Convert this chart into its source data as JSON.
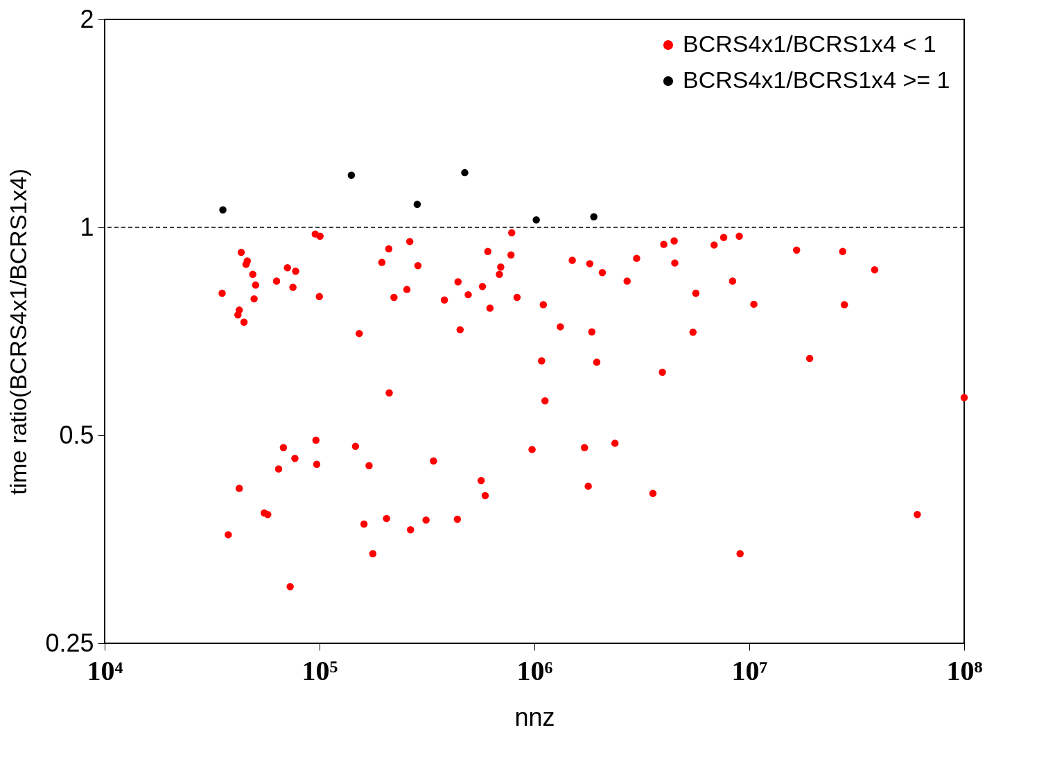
{
  "chart_data": {
    "type": "scatter",
    "xlabel": "nnz",
    "ylabel": "time ratio(BCRS4x1/BCRS1x4)",
    "log": "xy",
    "xlim": [
      10000,
      100000000
    ],
    "ylim": [
      0.25,
      2
    ],
    "xticks": [
      {
        "value": 10000,
        "label": "10⁴"
      },
      {
        "value": 100000,
        "label": "10⁵"
      },
      {
        "value": 1000000,
        "label": "10⁶"
      },
      {
        "value": 10000000,
        "label": "10⁷"
      },
      {
        "value": 100000000,
        "label": "10⁸"
      }
    ],
    "yticks": [
      0.25,
      0.5,
      1,
      2
    ],
    "grid": false,
    "legend": "top right",
    "marker": "circle",
    "ref_lines": [
      {
        "axis": "y",
        "value": 1,
        "line_style": "dashed",
        "color": "#000000"
      }
    ],
    "series": [
      {
        "name": "BCRS4x1/BCRS1x4 < 1",
        "color": "#ff0000",
        "x": [
          35200,
          37600,
          41700,
          42300,
          43200,
          44500,
          42300,
          45500,
          46100,
          48900,
          50400,
          49600,
          55300,
          57400,
          63100,
          64500,
          67900,
          70900,
          73000,
          75200,
          76800,
          77400,
          95500,
          100500,
          96200,
          97000,
          99800,
          147000,
          153000,
          161000,
          170000,
          177000,
          195000,
          205000,
          210000,
          211000,
          222000,
          255000,
          263000,
          265000,
          287000,
          313000,
          339000,
          381000,
          438000,
          441000,
          451000,
          492000,
          565000,
          573000,
          590000,
          607000,
          621000,
          687000,
          697000,
          778000,
          784000,
          830000,
          975000,
          1080000,
          1100000,
          1120000,
          1320000,
          1500000,
          1710000,
          1780000,
          1810000,
          1850000,
          1950000,
          2070000,
          2370000,
          2700000,
          2990000,
          3560000,
          3940000,
          4000000,
          4470000,
          4500000,
          5470000,
          5640000,
          6860000,
          7600000,
          8360000,
          8980000,
          9060000,
          10500000,
          16600000,
          19100000,
          27200000,
          27700000,
          38300000,
          60500000,
          100000000
        ],
        "values": [
          0.803,
          0.359,
          0.747,
          0.759,
          0.92,
          0.729,
          0.419,
          0.884,
          0.894,
          0.855,
          0.825,
          0.788,
          0.386,
          0.384,
          0.836,
          0.447,
          0.48,
          0.874,
          0.302,
          0.819,
          0.463,
          0.864,
          0.978,
          0.971,
          0.492,
          0.454,
          0.794,
          0.482,
          0.702,
          0.372,
          0.452,
          0.337,
          0.89,
          0.379,
          0.931,
          0.576,
          0.792,
          0.813,
          0.954,
          0.365,
          0.88,
          0.377,
          0.459,
          0.785,
          0.378,
          0.834,
          0.711,
          0.799,
          0.43,
          0.821,
          0.409,
          0.923,
          0.764,
          0.855,
          0.876,
          0.912,
          0.982,
          0.792,
          0.477,
          0.641,
          0.773,
          0.561,
          0.718,
          0.896,
          0.48,
          0.422,
          0.886,
          0.706,
          0.638,
          0.86,
          0.487,
          0.836,
          0.902,
          0.412,
          0.617,
          0.945,
          0.956,
          0.888,
          0.705,
          0.803,
          0.943,
          0.967,
          0.836,
          0.971,
          0.337,
          0.774,
          0.927,
          0.646,
          0.923,
          0.773,
          0.868,
          0.384,
          0.567
        ]
      },
      {
        "name": "BCRS4x1/BCRS1x4 >= 1",
        "color": "#000000",
        "x": [
          35500,
          140600,
          284800,
          474000,
          1020000,
          1890000
        ],
        "values": [
          1.06,
          1.19,
          1.08,
          1.2,
          1.025,
          1.036
        ]
      }
    ]
  }
}
